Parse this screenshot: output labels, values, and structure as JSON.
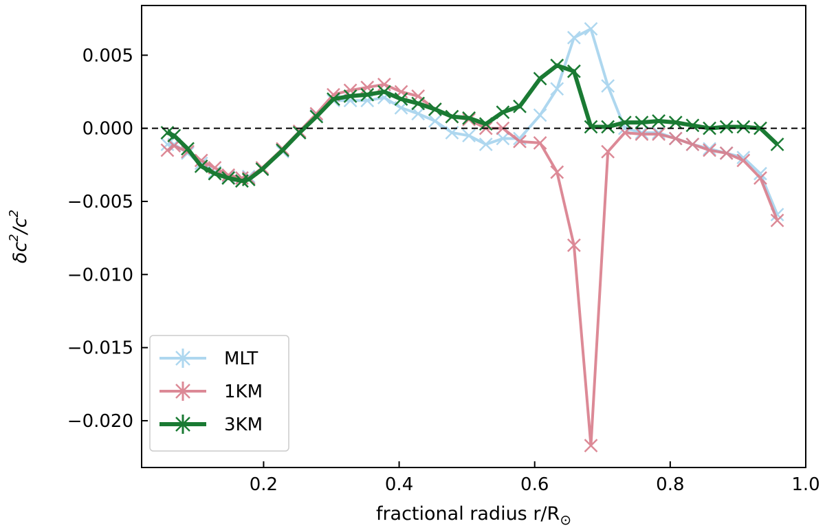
{
  "chart_data": {
    "type": "line",
    "xlabel": "fractional radius r/R",
    "xlabel_sub": "⊙",
    "ylabel_parts": [
      "δc",
      "2",
      "/c",
      "2"
    ],
    "xlim": [
      0.02,
      1.0
    ],
    "ylim": [
      -0.0232,
      0.0084
    ],
    "xticks": [
      0.2,
      0.4,
      0.6,
      0.8,
      1.0
    ],
    "xtick_labels": [
      "0.2",
      "0.4",
      "0.6",
      "0.8",
      "1.0"
    ],
    "yticks": [
      0.005,
      0.0,
      -0.005,
      -0.01,
      -0.015,
      -0.02
    ],
    "ytick_labels": [
      "0.005",
      "0.000",
      "−0.005",
      "−0.010",
      "−0.015",
      "−0.020"
    ],
    "reference_line": {
      "y": 0.0,
      "style": "dashed",
      "color": "#000000"
    },
    "legend_position": "lower-left",
    "series": [
      {
        "name": "MLT",
        "color": "#a6d3ee",
        "x": [
          0.058,
          0.068,
          0.088,
          0.108,
          0.128,
          0.148,
          0.168,
          0.178,
          0.198,
          0.228,
          0.253,
          0.278,
          0.303,
          0.328,
          0.353,
          0.378,
          0.403,
          0.428,
          0.453,
          0.478,
          0.503,
          0.528,
          0.553,
          0.578,
          0.608,
          0.633,
          0.658,
          0.683,
          0.708,
          0.733,
          0.758,
          0.783,
          0.808,
          0.833,
          0.858,
          0.883,
          0.908,
          0.933,
          0.958
        ],
        "y": [
          -0.0011,
          -0.0011,
          -0.0017,
          -0.0024,
          -0.003,
          -0.0033,
          -0.0034,
          -0.0033,
          -0.0028,
          -0.0016,
          -0.0003,
          0.0009,
          0.0019,
          0.0019,
          0.0019,
          0.0021,
          0.0014,
          0.001,
          0.0005,
          -0.0003,
          -0.0005,
          -0.0011,
          -0.0007,
          -0.0007,
          0.0009,
          0.0027,
          0.0062,
          0.0068,
          0.0029,
          0.0,
          -0.0003,
          -0.0003,
          -0.0007,
          -0.0011,
          -0.0014,
          -0.0017,
          -0.002,
          -0.0031,
          -0.0059
        ]
      },
      {
        "name": "1KM",
        "color": "#d97d8b",
        "x": [
          0.058,
          0.068,
          0.088,
          0.108,
          0.128,
          0.148,
          0.168,
          0.178,
          0.198,
          0.228,
          0.253,
          0.278,
          0.303,
          0.328,
          0.353,
          0.378,
          0.403,
          0.428,
          0.453,
          0.478,
          0.503,
          0.528,
          0.553,
          0.578,
          0.608,
          0.633,
          0.658,
          0.683,
          0.708,
          0.733,
          0.758,
          0.783,
          0.808,
          0.833,
          0.858,
          0.883,
          0.908,
          0.933,
          0.958
        ],
        "y": [
          -0.0015,
          -0.0012,
          -0.0016,
          -0.0022,
          -0.0027,
          -0.0032,
          -0.0034,
          -0.0034,
          -0.0027,
          -0.0014,
          -0.0002,
          0.001,
          0.0023,
          0.0026,
          0.0028,
          0.003,
          0.0025,
          0.0022,
          0.0013,
          0.0008,
          0.0006,
          0.0,
          0.0,
          -0.0009,
          -0.001,
          -0.003,
          -0.008,
          -0.0217,
          -0.0016,
          -0.0003,
          -0.0004,
          -0.0004,
          -0.0007,
          -0.0011,
          -0.0015,
          -0.0017,
          -0.0022,
          -0.0034,
          -0.0063
        ]
      },
      {
        "name": "3KM",
        "color": "#1a7a33",
        "x": [
          0.058,
          0.068,
          0.088,
          0.108,
          0.128,
          0.148,
          0.168,
          0.178,
          0.198,
          0.228,
          0.253,
          0.278,
          0.303,
          0.328,
          0.353,
          0.378,
          0.403,
          0.428,
          0.453,
          0.478,
          0.503,
          0.528,
          0.553,
          0.578,
          0.608,
          0.633,
          0.658,
          0.683,
          0.708,
          0.733,
          0.758,
          0.783,
          0.808,
          0.833,
          0.858,
          0.883,
          0.908,
          0.933,
          0.958
        ],
        "y": [
          -0.0003,
          -0.0005,
          -0.0014,
          -0.0026,
          -0.0031,
          -0.0034,
          -0.0036,
          -0.0035,
          -0.0028,
          -0.0015,
          -0.0003,
          0.0008,
          0.002,
          0.0022,
          0.0023,
          0.0025,
          0.002,
          0.0017,
          0.0013,
          0.0008,
          0.0007,
          0.0003,
          0.0011,
          0.0015,
          0.0034,
          0.0043,
          0.0039,
          0.0001,
          0.0001,
          0.0004,
          0.0004,
          0.0005,
          0.0004,
          0.0002,
          0.0,
          0.0001,
          0.0001,
          0.0,
          -0.0011
        ]
      }
    ]
  }
}
